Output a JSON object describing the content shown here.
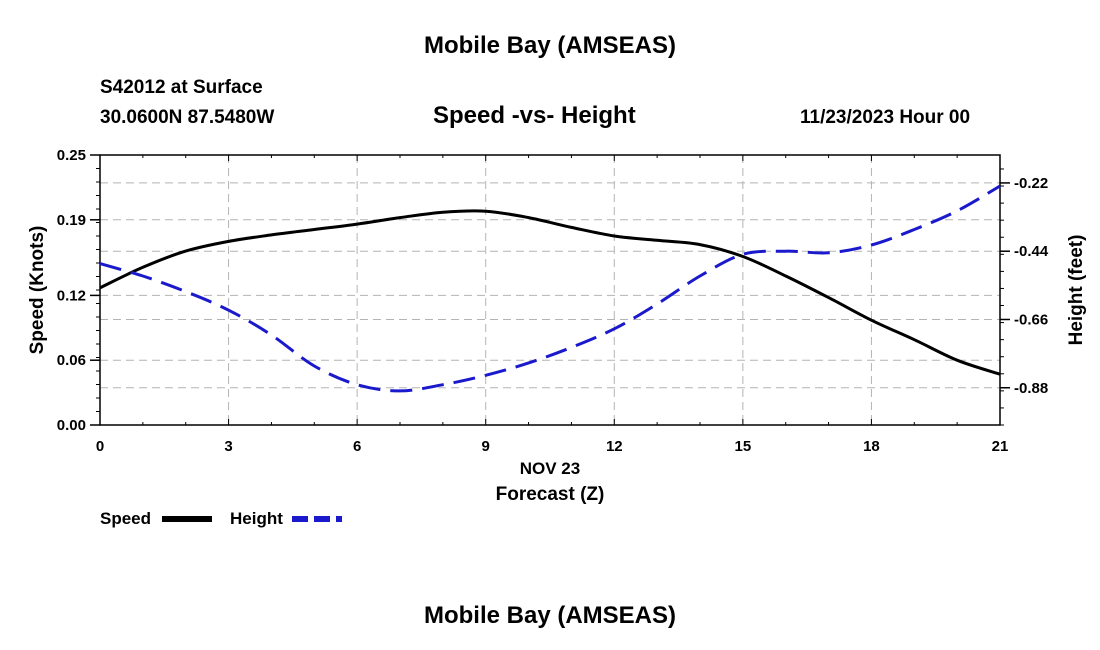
{
  "header": {
    "title": "Mobile Bay (AMSEAS)",
    "station": "S42012 at Surface",
    "location": "30.0600N  87.5480W",
    "subtitle": "Speed -vs- Height",
    "datetime": "11/23/2023 Hour 00"
  },
  "legend": {
    "speed_label": "Speed",
    "height_label": "Height"
  },
  "footer": {
    "title": "Mobile Bay (AMSEAS)"
  },
  "colors": {
    "speed": "#000000",
    "height": "#1a1acc",
    "grid": "#b4b4b4"
  },
  "chart_data": {
    "type": "line",
    "title": "Speed -vs- Height",
    "xlabel": "Forecast (Z)",
    "xlabel_date": "NOV 23",
    "ylabel": "Speed (Knots)",
    "y2label": "Height (feet)",
    "xlim": [
      0,
      21
    ],
    "ylim": [
      0,
      0.25
    ],
    "y2lim": [
      -1.0,
      -0.13
    ],
    "x_ticks": [
      0,
      3,
      6,
      9,
      12,
      15,
      18,
      21
    ],
    "y_ticks": [
      "0.00",
      "0.06",
      "0.12",
      "0.19",
      "0.25"
    ],
    "y2_ticks": [
      "-0.22",
      "-0.44",
      "-0.66",
      "-0.88"
    ],
    "grid": true,
    "series": [
      {
        "name": "Speed",
        "axis": "left",
        "style": "solid",
        "x": [
          0,
          1,
          2,
          3,
          4,
          5,
          6,
          7,
          8,
          9,
          10,
          11,
          12,
          13,
          14,
          15,
          16,
          17,
          18,
          19,
          20,
          21
        ],
        "values": [
          0.127,
          0.146,
          0.161,
          0.17,
          0.176,
          0.181,
          0.186,
          0.192,
          0.197,
          0.198,
          0.192,
          0.183,
          0.175,
          0.171,
          0.167,
          0.156,
          0.138,
          0.118,
          0.097,
          0.079,
          0.06,
          0.047
        ]
      },
      {
        "name": "Height",
        "axis": "right",
        "style": "dashed",
        "x": [
          0,
          1,
          2,
          3,
          4,
          5,
          6,
          7,
          8,
          9,
          10,
          11,
          12,
          13,
          14,
          15,
          16,
          17,
          18,
          19,
          20,
          21
        ],
        "values": [
          -0.48,
          -0.52,
          -0.57,
          -0.63,
          -0.71,
          -0.81,
          -0.87,
          -0.89,
          -0.87,
          -0.84,
          -0.8,
          -0.75,
          -0.69,
          -0.61,
          -0.52,
          -0.45,
          -0.44,
          -0.445,
          -0.42,
          -0.37,
          -0.31,
          -0.23
        ]
      }
    ]
  }
}
